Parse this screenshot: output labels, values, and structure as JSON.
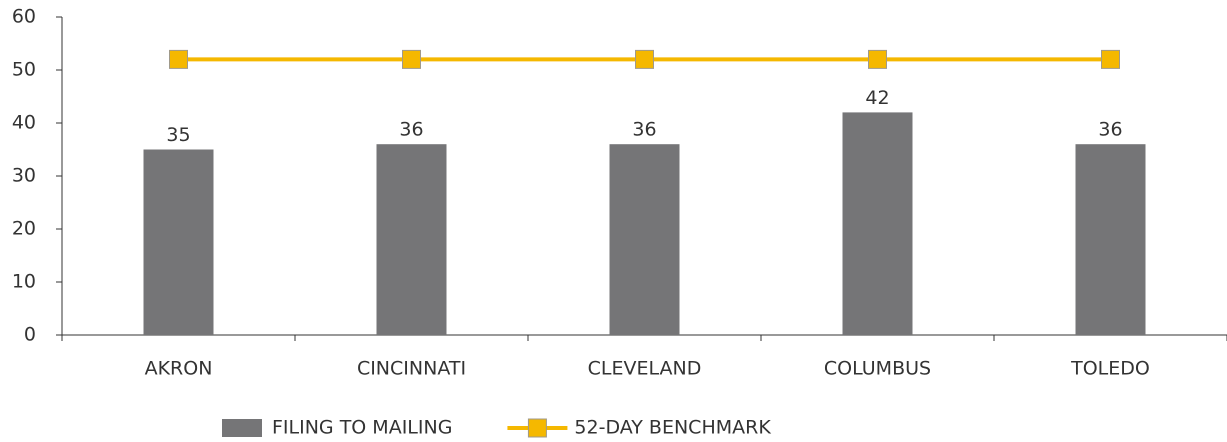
{
  "chart_data": {
    "type": "bar",
    "categories": [
      "AKRON",
      "CINCINNATI",
      "CLEVELAND",
      "COLUMBUS",
      "TOLEDO"
    ],
    "series": [
      {
        "name": "FILING TO MAILING",
        "type": "bar",
        "color": "#757577",
        "values": [
          35,
          36,
          36,
          42,
          36
        ],
        "data_labels": true
      },
      {
        "name": "52-DAY BENCHMARK",
        "type": "line",
        "color": "#f5b800",
        "values": [
          52,
          52,
          52,
          52,
          52
        ]
      }
    ],
    "ylim": [
      0,
      60
    ],
    "yticks": [
      0,
      10,
      20,
      30,
      40,
      50,
      60
    ],
    "grid": false,
    "legend": "bottom"
  }
}
